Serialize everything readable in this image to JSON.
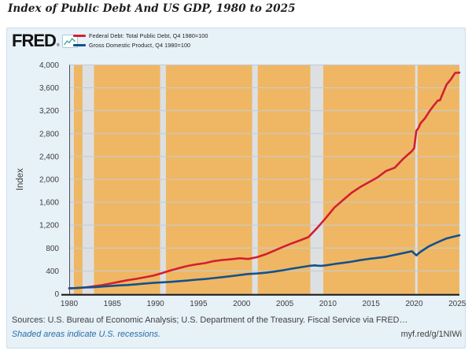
{
  "title": "Index of Public Debt And US GDP, 1980 to 2025",
  "header": {
    "logo": "FRED",
    "reg": "®",
    "logo_icon": "fred-mini-line-chart-icon"
  },
  "footer": {
    "sources": "Sources: U.S. Bureau of Economic Analysis; U.S. Department of the Treasury. Fiscal Service via FRED…",
    "recession_note": "Shaded areas indicate U.S. recessions.",
    "short_url": "myf.red/g/1NIWi"
  },
  "colors": {
    "card_bg": "#e7f1f8",
    "plot_bg": "#efb763",
    "recession_band": "#dde0e3",
    "gridline": "#c7cbcf",
    "axis_line": "#1b1b1b",
    "spine": "#45505a",
    "tick_text": "#3d3d3d",
    "debt_red": "#d21f32",
    "gdp_blue": "#13518c",
    "link_blue": "#2a6da3",
    "icon_teal": "#47a69a"
  },
  "chart_data": {
    "type": "line",
    "title": "Index of Public Debt And US GDP, 1980 to 2025",
    "xlabel": "",
    "ylabel": "Index",
    "xlim": [
      1980.0,
      2025.25
    ],
    "ylim": [
      0,
      4000
    ],
    "grid": "horizontal",
    "legend_position": "top-left",
    "note": "Shaded areas indicate U.S. recessions.",
    "yticks": [
      {
        "v": 0,
        "label": "0"
      },
      {
        "v": 400,
        "label": "400"
      },
      {
        "v": 800,
        "label": "800"
      },
      {
        "v": 1200,
        "label": "1,200"
      },
      {
        "v": 1600,
        "label": "1,600"
      },
      {
        "v": 2000,
        "label": "2,000"
      },
      {
        "v": 2400,
        "label": "2,400"
      },
      {
        "v": 2800,
        "label": "2,800"
      },
      {
        "v": 3200,
        "label": "3,200"
      },
      {
        "v": 3600,
        "label": "3,600"
      },
      {
        "v": 4000,
        "label": "4,000"
      }
    ],
    "xticks": [
      {
        "v": 1980,
        "label": "1980"
      },
      {
        "v": 1985,
        "label": "1985"
      },
      {
        "v": 1990,
        "label": "1990"
      },
      {
        "v": 1995,
        "label": "1995"
      },
      {
        "v": 2000,
        "label": "2000"
      },
      {
        "v": 2005,
        "label": "2005"
      },
      {
        "v": 2010,
        "label": "2010"
      },
      {
        "v": 2015,
        "label": "2015"
      },
      {
        "v": 2020,
        "label": "2020"
      },
      {
        "v": 2025,
        "label": "2025"
      }
    ],
    "recessions": [
      [
        1980.08,
        1980.54
      ],
      [
        1981.54,
        1982.87
      ],
      [
        1990.54,
        1991.21
      ],
      [
        2001.21,
        2001.87
      ],
      [
        2007.96,
        2009.46
      ],
      [
        2020.12,
        2020.29
      ]
    ],
    "series": [
      {
        "name": "Federal Debt: Total Public Debt, Q4 1980=100",
        "color": "#d21f32",
        "points": [
          [
            1980.0,
            93
          ],
          [
            1980.75,
            100
          ],
          [
            1981.75,
            110.6
          ],
          [
            1982.75,
            128.7
          ],
          [
            1983.75,
            151.7
          ],
          [
            1984.75,
            178.7
          ],
          [
            1985.75,
            209.2
          ],
          [
            1986.75,
            238.1
          ],
          [
            1987.75,
            261.4
          ],
          [
            1988.75,
            288.6
          ],
          [
            1989.75,
            317.5
          ],
          [
            1990.75,
            361.7
          ],
          [
            1991.75,
            408.7
          ],
          [
            1992.75,
            449.0
          ],
          [
            1993.75,
            487.6
          ],
          [
            1994.75,
            516.1
          ],
          [
            1995.75,
            536.3
          ],
          [
            1996.75,
            572.3
          ],
          [
            1997.75,
            591.5
          ],
          [
            1998.75,
            603.6
          ],
          [
            1999.75,
            621.0
          ],
          [
            2000.75,
            608.7
          ],
          [
            2001.75,
            639.0
          ],
          [
            2002.75,
            688.6
          ],
          [
            2003.75,
            752.3
          ],
          [
            2004.75,
            816.6
          ],
          [
            2005.75,
            878.4
          ],
          [
            2006.75,
            933.2
          ],
          [
            2007.75,
            992.2
          ],
          [
            2008.75,
            1150.3
          ],
          [
            2009.75,
            1323.5
          ],
          [
            2010.75,
            1507.8
          ],
          [
            2011.75,
            1636.5
          ],
          [
            2012.75,
            1766.6
          ],
          [
            2013.75,
            1865.4
          ],
          [
            2014.75,
            1950.3
          ],
          [
            2015.75,
            2034.2
          ],
          [
            2016.75,
            2147.6
          ],
          [
            2017.75,
            2203.0
          ],
          [
            2018.75,
            2362.3
          ],
          [
            2019.75,
            2494.4
          ],
          [
            2020.0,
            2546
          ],
          [
            2020.25,
            2846
          ],
          [
            2020.5,
            2897
          ],
          [
            2020.75,
            2983
          ],
          [
            2021.25,
            3067
          ],
          [
            2021.75,
            3184
          ],
          [
            2022.25,
            3286
          ],
          [
            2022.75,
            3378
          ],
          [
            2023.0,
            3382
          ],
          [
            2023.25,
            3476
          ],
          [
            2023.75,
            3655
          ],
          [
            2024.25,
            3745
          ],
          [
            2024.75,
            3860
          ],
          [
            2025.0,
            3862
          ],
          [
            2025.25,
            3865
          ]
        ]
      },
      {
        "name": "Gross Domestic Product, Q4 1980=100",
        "color": "#13518c",
        "points": [
          [
            1980.0,
            98.3
          ],
          [
            1980.75,
            100
          ],
          [
            1981.75,
            111.3
          ],
          [
            1982.75,
            114.4
          ],
          [
            1983.75,
            125.8
          ],
          [
            1984.75,
            136.6
          ],
          [
            1985.75,
            146.7
          ],
          [
            1986.75,
            154.6
          ],
          [
            1987.75,
            166.6
          ],
          [
            1988.75,
            179.7
          ],
          [
            1989.75,
            191.1
          ],
          [
            1990.75,
            201.0
          ],
          [
            1991.75,
            208.5
          ],
          [
            1992.75,
            221.6
          ],
          [
            1993.75,
            232.9
          ],
          [
            1994.75,
            247.6
          ],
          [
            1995.75,
            259.1
          ],
          [
            1996.75,
            274.6
          ],
          [
            1997.75,
            291.3
          ],
          [
            1998.75,
            307.4
          ],
          [
            1999.75,
            327.6
          ],
          [
            2000.75,
            346.6
          ],
          [
            2001.75,
            355.0
          ],
          [
            2002.75,
            367.9
          ],
          [
            2003.75,
            387.2
          ],
          [
            2004.75,
            411.2
          ],
          [
            2005.75,
            438.2
          ],
          [
            2006.75,
            461.5
          ],
          [
            2007.75,
            486.2
          ],
          [
            2008.5,
            497.0
          ],
          [
            2008.75,
            492.2
          ],
          [
            2009.25,
            489.0
          ],
          [
            2009.75,
            497.6
          ],
          [
            2010.75,
            521.6
          ],
          [
            2011.75,
            540.6
          ],
          [
            2012.75,
            561.9
          ],
          [
            2013.75,
            588.3
          ],
          [
            2014.75,
            610.9
          ],
          [
            2015.75,
            627.9
          ],
          [
            2016.75,
            647.5
          ],
          [
            2017.75,
            680.4
          ],
          [
            2018.75,
            712.2
          ],
          [
            2019.75,
            744.2
          ],
          [
            2020.25,
            672.0
          ],
          [
            2020.75,
            735.6
          ],
          [
            2021.75,
            833.2
          ],
          [
            2022.75,
            903.7
          ],
          [
            2023.75,
            968.3
          ],
          [
            2024.75,
            1005.0
          ],
          [
            2025.25,
            1022.0
          ]
        ]
      }
    ]
  }
}
